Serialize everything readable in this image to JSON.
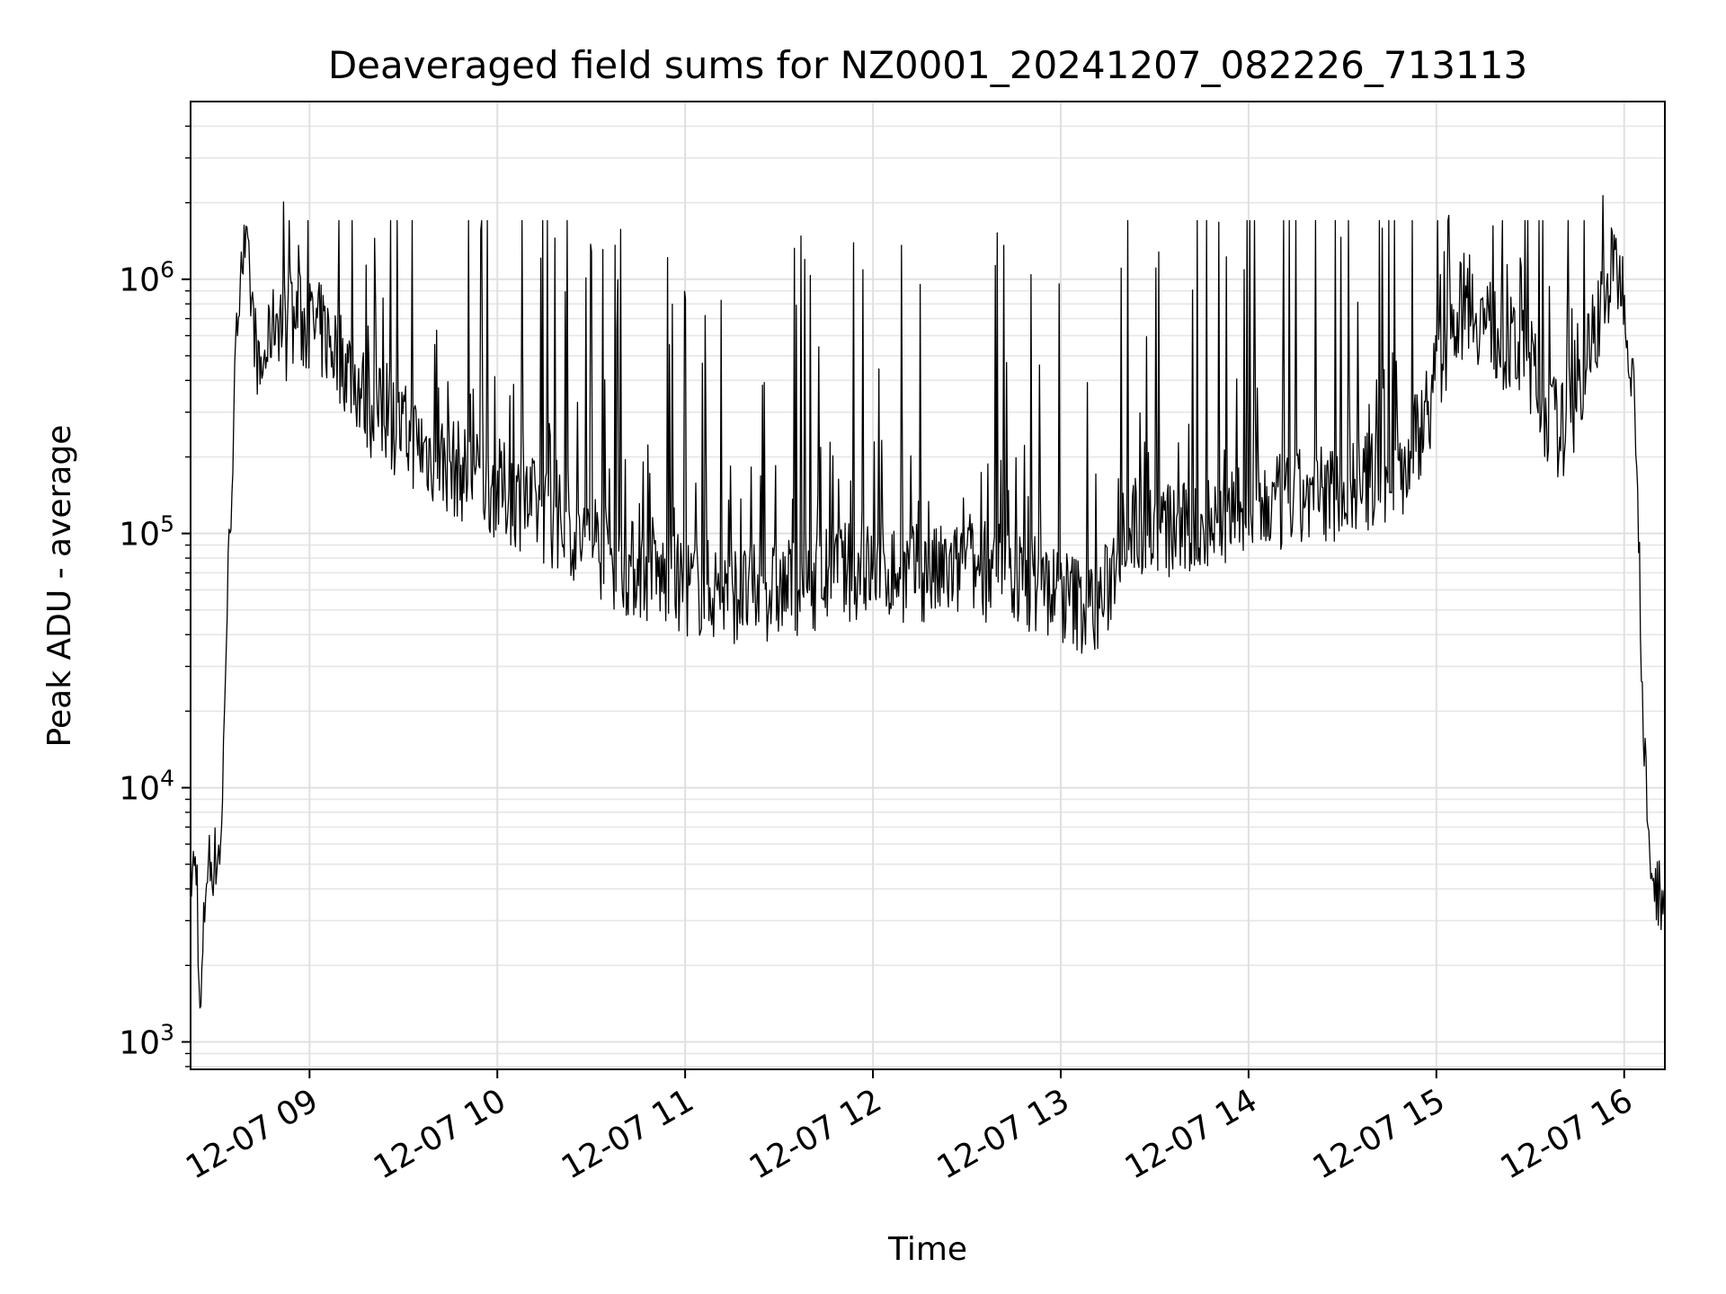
{
  "chart_data": {
    "type": "line",
    "title": "Deaveraged field sums for NZ0001_20241207_082226_713113",
    "xlabel": "Time",
    "ylabel": "Peak ADU - average",
    "yscale": "log",
    "grid": true,
    "xlim": [
      "2024-12-07 08:22",
      "2024-12-07 16:13"
    ],
    "ylim": [
      780,
      5000000
    ],
    "x_ticks": [
      "12-07 09",
      "12-07 10",
      "12-07 11",
      "12-07 12",
      "12-07 13",
      "12-07 14",
      "12-07 15",
      "12-07 16"
    ],
    "y_ticks": [
      {
        "base": "10",
        "exp": "3"
      },
      {
        "base": "10",
        "exp": "4"
      },
      {
        "base": "10",
        "exp": "5"
      },
      {
        "base": "10",
        "exp": "6"
      }
    ],
    "series": [
      {
        "color": "#000000",
        "x": [
          "08:22",
          "08:24",
          "08:25",
          "08:27",
          "08:28",
          "08:30",
          "08:32",
          "08:33",
          "08:35",
          "08:37",
          "08:38",
          "08:40",
          "08:42",
          "08:44",
          "08:46",
          "08:48",
          "08:50",
          "08:53",
          "08:56",
          "09:00",
          "09:05",
          "09:10",
          "09:15",
          "09:20",
          "09:25",
          "09:30",
          "09:40",
          "09:50",
          "10:00",
          "10:10",
          "10:20",
          "10:30",
          "10:40",
          "10:50",
          "11:00",
          "11:10",
          "11:20",
          "11:30",
          "11:40",
          "11:50",
          "12:00",
          "12:10",
          "12:20",
          "12:30",
          "12:40",
          "12:50",
          "13:00",
          "13:10",
          "13:15",
          "13:20",
          "13:30",
          "13:40",
          "13:50",
          "14:00",
          "14:10",
          "14:20",
          "14:30",
          "14:40",
          "14:50",
          "15:00",
          "15:05",
          "15:10",
          "15:20",
          "15:30",
          "15:35",
          "15:40",
          "15:45",
          "15:50",
          "15:55",
          "15:58",
          "16:00",
          "16:02",
          "16:04",
          "16:06",
          "16:08",
          "16:10",
          "16:13"
        ],
        "values": [
          4500,
          5000,
          1100,
          4800,
          5000,
          5200,
          6500,
          28000,
          150000,
          700000,
          1300000,
          1200000,
          700000,
          400000,
          500000,
          650000,
          750000,
          600000,
          700000,
          650000,
          600000,
          500000,
          400000,
          300000,
          280000,
          250000,
          200000,
          170000,
          150000,
          130000,
          110000,
          90000,
          75000,
          68000,
          62000,
          60000,
          57000,
          60000,
          65000,
          70000,
          72000,
          70000,
          68000,
          72000,
          70000,
          65000,
          58000,
          50000,
          60000,
          110000,
          105000,
          100000,
          110000,
          120000,
          130000,
          140000,
          150000,
          160000,
          180000,
          400000,
          700000,
          800000,
          600000,
          450000,
          300000,
          250000,
          350000,
          600000,
          1000000,
          1100000,
          900000,
          500000,
          250000,
          18000,
          5000,
          4000,
          3800
        ]
      }
    ]
  }
}
